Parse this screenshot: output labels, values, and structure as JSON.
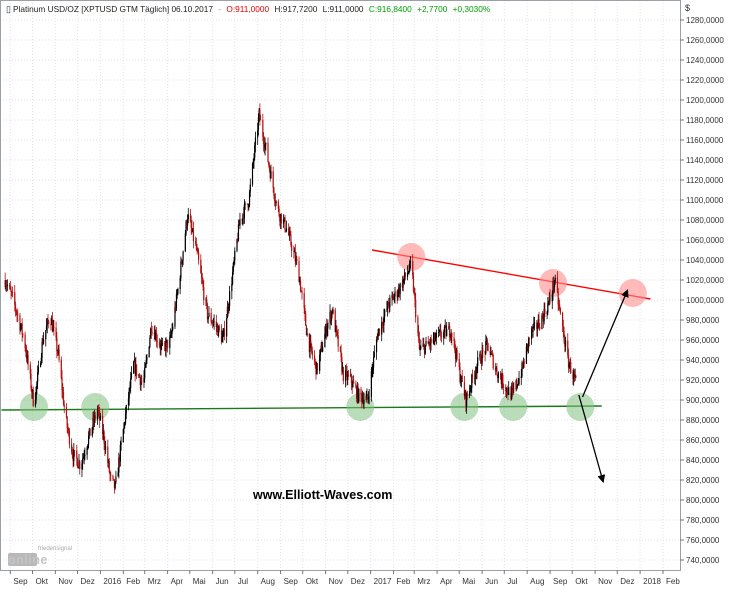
{
  "header": {
    "instrument": "Platinum USD/OZ [XPTUSD GTM  Täglich] 06.10.2017",
    "open": "O:911,0000",
    "high": "H:917,7200",
    "low": "L:911,0000",
    "close": "C:916,8400",
    "change": "+2,7700",
    "change_pct": "+0,3030%",
    "currency": "$"
  },
  "watermark": "www.Elliott-Waves.com",
  "logo": {
    "small": "friedensignal",
    "main": "online"
  },
  "colors": {
    "background": "#ffffff",
    "up_candle": "#000000",
    "down_candle": "#b01010",
    "resistance": "#ff0000",
    "support": "#1a7a1a",
    "support_marker": "#7fc07f",
    "resistance_marker": "#ff8c8c",
    "arrow": "#000000",
    "open_text": "#e00000",
    "close_text": "#00a000"
  },
  "chart_data": {
    "type": "candlestick",
    "title": "Platinum USD/OZ",
    "ylim": [
      730,
      1300
    ],
    "y_ticks": [
      "740,0000",
      "760,0000",
      "780,0000",
      "800,0000",
      "820,0000",
      "840,0000",
      "860,0000",
      "880,0000",
      "900,0000",
      "920,0000",
      "940,0000",
      "960,0000",
      "980,0000",
      "1000,0000",
      "1020,0000",
      "1040,0000",
      "1060,0000",
      "1080,0000",
      "1100,0000",
      "1120,0000",
      "1140,0000",
      "1160,0000",
      "1180,0000",
      "1200,0000",
      "1220,0000",
      "1240,0000",
      "1260,0000",
      "1280,0000"
    ],
    "x_labels": [
      {
        "label": "Sep",
        "date": "2015-09-01"
      },
      {
        "label": "Okt",
        "date": "2015-10-01"
      },
      {
        "label": "Nov",
        "date": "2015-11-01"
      },
      {
        "label": "Dez",
        "date": "2015-12-01"
      },
      {
        "label": "2016",
        "date": "2016-01-01"
      },
      {
        "label": "Feb",
        "date": "2016-02-01"
      },
      {
        "label": "Mrz",
        "date": "2016-03-01"
      },
      {
        "label": "Apr",
        "date": "2016-04-01"
      },
      {
        "label": "Mai",
        "date": "2016-05-01"
      },
      {
        "label": "Jun",
        "date": "2016-06-01"
      },
      {
        "label": "Jul",
        "date": "2016-07-01"
      },
      {
        "label": "Aug",
        "date": "2016-08-01"
      },
      {
        "label": "Sep",
        "date": "2016-09-01"
      },
      {
        "label": "Okt",
        "date": "2016-10-01"
      },
      {
        "label": "Nov",
        "date": "2016-11-01"
      },
      {
        "label": "Dez",
        "date": "2016-12-01"
      },
      {
        "label": "2017",
        "date": "2017-01-01"
      },
      {
        "label": "Feb",
        "date": "2017-02-01"
      },
      {
        "label": "Mrz",
        "date": "2017-03-01"
      },
      {
        "label": "Apr",
        "date": "2017-04-01"
      },
      {
        "label": "Mai",
        "date": "2017-05-01"
      },
      {
        "label": "Jun",
        "date": "2017-06-01"
      },
      {
        "label": "Jul",
        "date": "2017-07-01"
      },
      {
        "label": "Aug",
        "date": "2017-08-01"
      },
      {
        "label": "Sep",
        "date": "2017-09-01"
      },
      {
        "label": "Okt",
        "date": "2017-10-01"
      },
      {
        "label": "Nov",
        "date": "2017-11-01"
      },
      {
        "label": "Dez",
        "date": "2017-12-01"
      },
      {
        "label": "2018",
        "date": "2018-01-01"
      },
      {
        "label": "Feb",
        "date": "2018-02-01"
      }
    ],
    "price_path": [
      {
        "date": "2015-08-25",
        "price": 1020
      },
      {
        "date": "2015-09-05",
        "price": 1000
      },
      {
        "date": "2015-09-20",
        "price": 960
      },
      {
        "date": "2015-10-03",
        "price": 895
      },
      {
        "date": "2015-10-15",
        "price": 960
      },
      {
        "date": "2015-10-25",
        "price": 985
      },
      {
        "date": "2015-11-05",
        "price": 945
      },
      {
        "date": "2015-11-15",
        "price": 880
      },
      {
        "date": "2015-11-25",
        "price": 845
      },
      {
        "date": "2015-12-05",
        "price": 835
      },
      {
        "date": "2015-12-15",
        "price": 860
      },
      {
        "date": "2015-12-28",
        "price": 890
      },
      {
        "date": "2016-01-05",
        "price": 865
      },
      {
        "date": "2016-01-15",
        "price": 820
      },
      {
        "date": "2016-01-21",
        "price": 812
      },
      {
        "date": "2016-02-03",
        "price": 880
      },
      {
        "date": "2016-02-15",
        "price": 935
      },
      {
        "date": "2016-02-28",
        "price": 915
      },
      {
        "date": "2016-03-10",
        "price": 975
      },
      {
        "date": "2016-03-25",
        "price": 950
      },
      {
        "date": "2016-04-05",
        "price": 960
      },
      {
        "date": "2016-04-15",
        "price": 1010
      },
      {
        "date": "2016-04-28",
        "price": 1085
      },
      {
        "date": "2016-05-10",
        "price": 1050
      },
      {
        "date": "2016-05-25",
        "price": 985
      },
      {
        "date": "2016-06-05",
        "price": 975
      },
      {
        "date": "2016-06-15",
        "price": 960
      },
      {
        "date": "2016-06-25",
        "price": 1010
      },
      {
        "date": "2016-07-08",
        "price": 1080
      },
      {
        "date": "2016-07-20",
        "price": 1100
      },
      {
        "date": "2016-07-28",
        "price": 1150
      },
      {
        "date": "2016-08-03",
        "price": 1185
      },
      {
        "date": "2016-08-15",
        "price": 1140
      },
      {
        "date": "2016-08-28",
        "price": 1090
      },
      {
        "date": "2016-09-10",
        "price": 1070
      },
      {
        "date": "2016-09-25",
        "price": 1030
      },
      {
        "date": "2016-10-08",
        "price": 960
      },
      {
        "date": "2016-10-20",
        "price": 930
      },
      {
        "date": "2016-11-03",
        "price": 975
      },
      {
        "date": "2016-11-10",
        "price": 990
      },
      {
        "date": "2016-11-25",
        "price": 925
      },
      {
        "date": "2016-12-05",
        "price": 920
      },
      {
        "date": "2016-12-15",
        "price": 905
      },
      {
        "date": "2016-12-28",
        "price": 900
      },
      {
        "date": "2017-01-10",
        "price": 965
      },
      {
        "date": "2017-01-25",
        "price": 995
      },
      {
        "date": "2017-02-08",
        "price": 1010
      },
      {
        "date": "2017-02-25",
        "price": 1035
      },
      {
        "date": "2017-03-08",
        "price": 950
      },
      {
        "date": "2017-03-20",
        "price": 955
      },
      {
        "date": "2017-04-05",
        "price": 965
      },
      {
        "date": "2017-04-20",
        "price": 970
      },
      {
        "date": "2017-05-02",
        "price": 925
      },
      {
        "date": "2017-05-10",
        "price": 900
      },
      {
        "date": "2017-05-25",
        "price": 935
      },
      {
        "date": "2017-06-08",
        "price": 955
      },
      {
        "date": "2017-06-20",
        "price": 930
      },
      {
        "date": "2017-07-05",
        "price": 910
      },
      {
        "date": "2017-07-12",
        "price": 905
      },
      {
        "date": "2017-07-25",
        "price": 930
      },
      {
        "date": "2017-08-05",
        "price": 965
      },
      {
        "date": "2017-08-20",
        "price": 980
      },
      {
        "date": "2017-09-01",
        "price": 1000
      },
      {
        "date": "2017-09-07",
        "price": 1020
      },
      {
        "date": "2017-09-15",
        "price": 985
      },
      {
        "date": "2017-09-25",
        "price": 940
      },
      {
        "date": "2017-10-06",
        "price": 917
      }
    ],
    "resistance_line": [
      {
        "date": "2017-01-03",
        "price": 1050
      },
      {
        "date": "2018-01-15",
        "price": 1001
      }
    ],
    "support_line": [
      {
        "date": "2015-08-20",
        "price": 890
      },
      {
        "date": "2017-11-10",
        "price": 894
      }
    ],
    "support_markers": [
      {
        "date": "2015-10-03",
        "price": 893
      },
      {
        "date": "2015-12-25",
        "price": 893
      },
      {
        "date": "2016-12-18",
        "price": 893
      },
      {
        "date": "2017-05-08",
        "price": 893
      },
      {
        "date": "2017-07-13",
        "price": 893
      },
      {
        "date": "2017-10-12",
        "price": 893
      }
    ],
    "resistance_markers": [
      {
        "date": "2017-02-25",
        "price": 1043
      },
      {
        "date": "2017-09-05",
        "price": 1017
      },
      {
        "date": "2017-12-22",
        "price": 1007
      }
    ],
    "arrows": [
      {
        "from": {
          "date": "2017-10-15",
          "price": 903
        },
        "to": {
          "date": "2017-12-15",
          "price": 1010
        }
      },
      {
        "from": {
          "date": "2017-10-10",
          "price": 905
        },
        "to": {
          "date": "2017-11-12",
          "price": 818
        }
      }
    ]
  }
}
